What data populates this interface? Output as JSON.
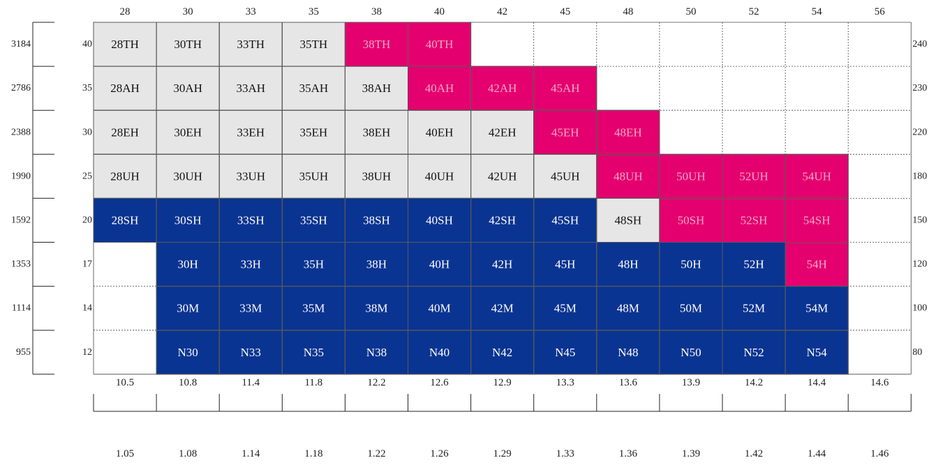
{
  "chart_data": {
    "type": "table",
    "title": "",
    "colors": {
      "grey": "#e6e6e6",
      "blue": "#0a3491",
      "pink": "#e5006f",
      "empty": "#ffffff",
      "text_dark": "#111111",
      "text_light": "#ffffff",
      "text_pink": "#f4a8c8"
    },
    "top_labels": [
      "28",
      "30",
      "33",
      "35",
      "38",
      "40",
      "42",
      "45",
      "48",
      "50",
      "52",
      "54",
      "56"
    ],
    "bottom_labels_1": [
      "10.5",
      "10.8",
      "11.4",
      "11.8",
      "12.2",
      "12.6",
      "12.9",
      "13.3",
      "13.6",
      "13.9",
      "14.2",
      "14.4",
      "14.6"
    ],
    "bottom_labels_2": [
      "1.05",
      "1.08",
      "1.14",
      "1.18",
      "1.22",
      "1.26",
      "1.29",
      "1.33",
      "1.36",
      "1.39",
      "1.42",
      "1.44",
      "1.46"
    ],
    "left_outer_labels": [
      "3184",
      "2786",
      "2388",
      "1990",
      "1592",
      "1353",
      "1114",
      "955"
    ],
    "left_inner_labels": [
      "40",
      "35",
      "30",
      "25",
      "20",
      "17",
      "14",
      "12"
    ],
    "right_labels": [
      "240",
      "230",
      "220",
      "180",
      "150",
      "120",
      "100",
      "80"
    ],
    "rows": [
      [
        [
          "28TH",
          "g"
        ],
        [
          "30TH",
          "g"
        ],
        [
          "33TH",
          "g"
        ],
        [
          "35TH",
          "g"
        ],
        [
          "38TH",
          "p"
        ],
        [
          "40TH",
          "p"
        ],
        [
          "",
          ""
        ],
        [
          "",
          ""
        ],
        [
          "",
          ""
        ],
        [
          "",
          ""
        ],
        [
          "",
          ""
        ],
        [
          "",
          ""
        ],
        [
          "",
          ""
        ]
      ],
      [
        [
          "28AH",
          "g"
        ],
        [
          "30AH",
          "g"
        ],
        [
          "33AH",
          "g"
        ],
        [
          "35AH",
          "g"
        ],
        [
          "38AH",
          "g"
        ],
        [
          "40AH",
          "p"
        ],
        [
          "42AH",
          "p"
        ],
        [
          "45AH",
          "p"
        ],
        [
          "",
          ""
        ],
        [
          "",
          ""
        ],
        [
          "",
          ""
        ],
        [
          "",
          ""
        ],
        [
          "",
          ""
        ]
      ],
      [
        [
          "28EH",
          "g"
        ],
        [
          "30EH",
          "g"
        ],
        [
          "33EH",
          "g"
        ],
        [
          "35EH",
          "g"
        ],
        [
          "38EH",
          "g"
        ],
        [
          "40EH",
          "g"
        ],
        [
          "42EH",
          "g"
        ],
        [
          "45EH",
          "p"
        ],
        [
          "48EH",
          "p"
        ],
        [
          "",
          ""
        ],
        [
          "",
          ""
        ],
        [
          "",
          ""
        ],
        [
          "",
          ""
        ]
      ],
      [
        [
          "28UH",
          "g"
        ],
        [
          "30UH",
          "g"
        ],
        [
          "33UH",
          "g"
        ],
        [
          "35UH",
          "g"
        ],
        [
          "38UH",
          "g"
        ],
        [
          "40UH",
          "g"
        ],
        [
          "42UH",
          "g"
        ],
        [
          "45UH",
          "g"
        ],
        [
          "48UH",
          "p"
        ],
        [
          "50UH",
          "p"
        ],
        [
          "52UH",
          "p"
        ],
        [
          "54UH",
          "p"
        ],
        [
          "",
          ""
        ]
      ],
      [
        [
          "28SH",
          "b"
        ],
        [
          "30SH",
          "b"
        ],
        [
          "33SH",
          "b"
        ],
        [
          "35SH",
          "b"
        ],
        [
          "38SH",
          "b"
        ],
        [
          "40SH",
          "b"
        ],
        [
          "42SH",
          "b"
        ],
        [
          "45SH",
          "b"
        ],
        [
          "48SH",
          "g"
        ],
        [
          "50SH",
          "p"
        ],
        [
          "52SH",
          "p"
        ],
        [
          "54SH",
          "p"
        ],
        [
          "",
          ""
        ]
      ],
      [
        [
          "",
          ""
        ],
        [
          "30H",
          "b"
        ],
        [
          "33H",
          "b"
        ],
        [
          "35H",
          "b"
        ],
        [
          "38H",
          "b"
        ],
        [
          "40H",
          "b"
        ],
        [
          "42H",
          "b"
        ],
        [
          "45H",
          "b"
        ],
        [
          "48H",
          "b"
        ],
        [
          "50H",
          "b"
        ],
        [
          "52H",
          "b"
        ],
        [
          "54H",
          "p"
        ],
        [
          "",
          ""
        ]
      ],
      [
        [
          "",
          ""
        ],
        [
          "30M",
          "b"
        ],
        [
          "33M",
          "b"
        ],
        [
          "35M",
          "b"
        ],
        [
          "38M",
          "b"
        ],
        [
          "40M",
          "b"
        ],
        [
          "42M",
          "b"
        ],
        [
          "45M",
          "b"
        ],
        [
          "48M",
          "b"
        ],
        [
          "50M",
          "b"
        ],
        [
          "52M",
          "b"
        ],
        [
          "54M",
          "b"
        ],
        [
          "",
          ""
        ]
      ],
      [
        [
          "",
          ""
        ],
        [
          "N30",
          "b"
        ],
        [
          "N33",
          "b"
        ],
        [
          "N35",
          "b"
        ],
        [
          "N38",
          "b"
        ],
        [
          "N40",
          "b"
        ],
        [
          "N42",
          "b"
        ],
        [
          "N45",
          "b"
        ],
        [
          "N48",
          "b"
        ],
        [
          "N50",
          "b"
        ],
        [
          "N52",
          "b"
        ],
        [
          "N54",
          "b"
        ],
        [
          "",
          ""
        ]
      ]
    ]
  }
}
